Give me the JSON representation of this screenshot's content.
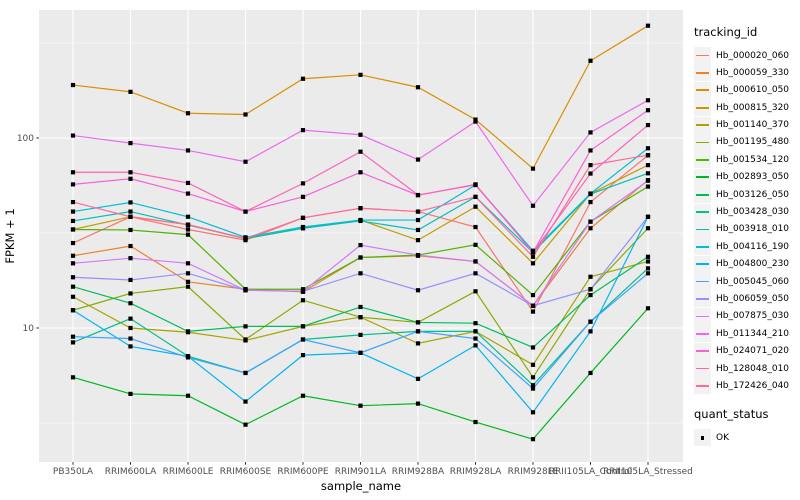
{
  "chart_data": {
    "type": "line",
    "title": "",
    "xlabel": "sample_name",
    "ylabel": "FPKM + 1",
    "y_scale": "log10",
    "y_ticks": [
      100,
      10
    ],
    "ylim": [
      2,
      470
    ],
    "grid": true,
    "legend_position": "right",
    "point_shape": "filled-square",
    "categories": [
      "PB350LA",
      "RRIM600LA",
      "RRIM600LE",
      "RRIM600SE",
      "RRIM600PE",
      "RRIM901LA",
      "RRIM928BA",
      "RRIM928LA",
      "RRIM928LE",
      "RRII105LA_Control",
      "RRII105LA_Stressed"
    ],
    "series": [
      {
        "name": "Hb_000020_060",
        "color": "#F8766D",
        "values": [
          28,
          38.5,
          33,
          29,
          38,
          42.7,
          41,
          34,
          12.2,
          46,
          81
        ]
      },
      {
        "name": "Hb_000059_330",
        "color": "#EA8331",
        "values": [
          24,
          27,
          17.5,
          16,
          15.5,
          23.5,
          24,
          22.4,
          13.1,
          33.5,
          60
        ]
      },
      {
        "name": "Hb_000610_050",
        "color": "#DA8F00",
        "values": [
          190,
          175,
          135,
          133,
          205,
          215,
          185,
          125,
          69,
          255,
          390
        ]
      },
      {
        "name": "Hb_000815_320",
        "color": "#C49A00",
        "values": [
          33,
          38.5,
          35,
          29.5,
          33.5,
          37,
          29,
          43.5,
          21.9,
          51,
          72
        ]
      },
      {
        "name": "Hb_001140_370",
        "color": "#A8A400",
        "values": [
          14.6,
          10,
          9.5,
          8.6,
          10.2,
          11.4,
          8.3,
          9.6,
          6.4,
          18.6,
          22.4
        ]
      },
      {
        "name": "Hb_001195_480",
        "color": "#84AC00",
        "values": [
          12.4,
          15.2,
          16.5,
          8.7,
          14,
          11.4,
          10.7,
          15.6,
          5.5,
          16,
          33.5
        ]
      },
      {
        "name": "Hb_001534_120",
        "color": "#52B400",
        "values": [
          33,
          32.8,
          31,
          16,
          16,
          23.5,
          24.2,
          27.4,
          14.9,
          36.3,
          55.5
        ]
      },
      {
        "name": "Hb_002893_050",
        "color": "#00B81F",
        "values": [
          5.5,
          4.5,
          4.4,
          3.1,
          4.4,
          3.9,
          4,
          3.2,
          2.6,
          5.8,
          12.7
        ]
      },
      {
        "name": "Hb_003126_050",
        "color": "#00BD5C",
        "values": [
          16.5,
          13.5,
          9.6,
          10.2,
          10.2,
          12.9,
          10.7,
          10.6,
          7.9,
          14.9,
          23.7
        ]
      },
      {
        "name": "Hb_003428_030",
        "color": "#00C08D",
        "values": [
          8.4,
          11.2,
          7.1,
          5.8,
          8.7,
          9.2,
          9.6,
          9.6,
          5,
          10.8,
          20.6
        ]
      },
      {
        "name": "Hb_003918_010",
        "color": "#00C0B6",
        "values": [
          36.6,
          41,
          34.8,
          29.6,
          33.5,
          36.6,
          32.8,
          49,
          25,
          50.7,
          65.2
        ]
      },
      {
        "name": "Hb_004116_190",
        "color": "#00BDD9",
        "values": [
          41,
          45.8,
          38.5,
          30,
          34,
          37,
          37,
          56.6,
          25.5,
          51,
          88.3
        ]
      },
      {
        "name": "Hb_004800_230",
        "color": "#00B4F2",
        "values": [
          12.4,
          8,
          7.1,
          4.1,
          7.2,
          7.4,
          5.4,
          8.1,
          3.6,
          9.6,
          38.5
        ]
      },
      {
        "name": "Hb_005045_060",
        "color": "#3FA2FF",
        "values": [
          9,
          8.8,
          7,
          5.8,
          8.7,
          7.4,
          9.6,
          8.8,
          4.8,
          10.8,
          19.4
        ]
      },
      {
        "name": "Hb_006059_050",
        "color": "#9590FF",
        "values": [
          18.5,
          17.9,
          19.4,
          15.8,
          15.6,
          19.4,
          15.8,
          19.4,
          13.1,
          16,
          38.5
        ]
      },
      {
        "name": "Hb_007875_030",
        "color": "#D277FF",
        "values": [
          21.9,
          23.3,
          21.9,
          15.8,
          15.6,
          27.3,
          24.2,
          22.4,
          13.1,
          36.3,
          59.6
        ]
      },
      {
        "name": "Hb_011344_210",
        "color": "#EC69EF",
        "values": [
          103,
          94,
          86,
          75,
          110,
          104,
          77,
          122,
          44,
          107,
          158
        ]
      },
      {
        "name": "Hb_024071_020",
        "color": "#FB61D7",
        "values": [
          57,
          61,
          51,
          41,
          49,
          66,
          50,
          57,
          25,
          86,
          140
        ]
      },
      {
        "name": "Hb_128048_010",
        "color": "#FF62BC",
        "values": [
          66,
          66,
          58,
          41,
          57.7,
          84.7,
          50.1,
          56.6,
          25,
          65,
          117
        ]
      },
      {
        "name": "Hb_172426_040",
        "color": "#FF6A98",
        "values": [
          46,
          38.5,
          35,
          29.6,
          38,
          42.7,
          41,
          49,
          23.7,
          72,
          81.3
        ]
      }
    ]
  },
  "legend": {
    "tracking_title": "tracking_id",
    "quant_title": "quant_status",
    "quant_items": [
      "OK"
    ]
  },
  "theme": {
    "panel_bg": "#EBEBEB",
    "grid_color": "#FFFFFF",
    "tick_color": "#333333",
    "tick_label_color": "#4D4D4D",
    "text_color": "#000000",
    "key_bg": "#F2F2F2",
    "point_color": "#000000"
  }
}
